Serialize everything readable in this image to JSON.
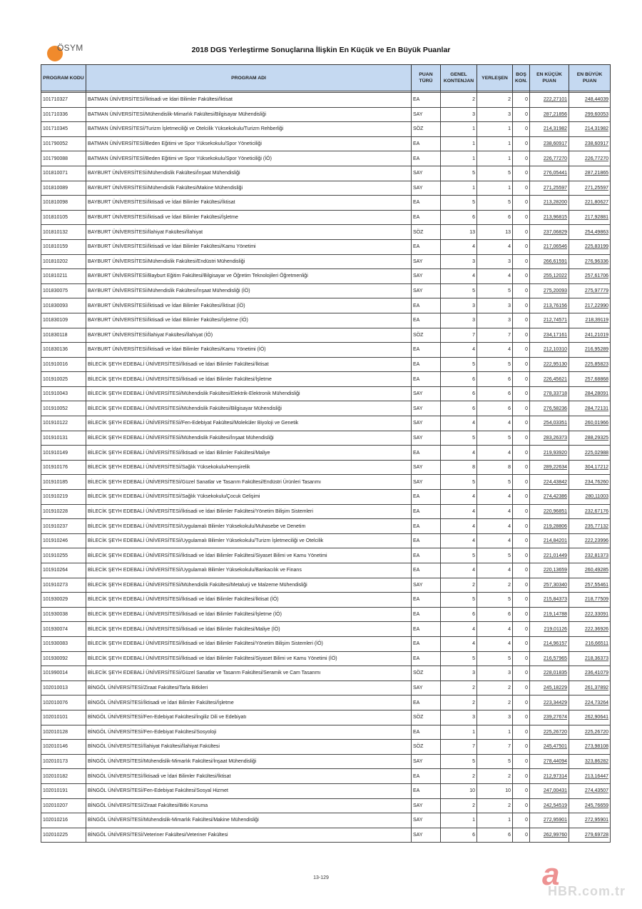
{
  "logo": {
    "text": "ÖSYM",
    "color": "#f08a2c"
  },
  "title": "2018 DGS Yerleştirme Sonuçlarına İlişkin En Küçük ve En Büyük Puanlar",
  "columns": [
    "PROGRAM KODU",
    "PROGRAM ADI",
    "PUAN TÜRÜ",
    "GENEL KONTENJAN",
    "YERLEŞEN",
    "BOŞ KON.",
    "EN KÜÇÜK PUAN",
    "EN BÜYÜK PUAN"
  ],
  "header_color": "#c5d9f1",
  "rows": [
    [
      "101710327",
      "BATMAN ÜNİVERSİTESİ/İktisadi ve İdari Bilimler Fakültesi/İktisat",
      "EA",
      "2",
      "2",
      "0",
      "222,27101",
      "248,44039"
    ],
    [
      "101710336",
      "BATMAN ÜNİVERSİTESİ/Mühendislik-Mimarlık Fakültesi/Bilgisayar Mühendisliği",
      "SAY",
      "3",
      "3",
      "0",
      "287,21856",
      "299,60053"
    ],
    [
      "101710345",
      "BATMAN ÜNİVERSİTESİ/Turizm İşletmeciliği ve Otelcilik Yüksekokulu/Turizm Rehberliği",
      "SÖZ",
      "1",
      "1",
      "0",
      "214,31982",
      "214,31982"
    ],
    [
      "101790052",
      "BATMAN ÜNİVERSİTESİ/Beden Eğitimi ve Spor Yüksekokulu/Spor Yöneticiliği",
      "EA",
      "1",
      "1",
      "0",
      "238,60917",
      "238,60917"
    ],
    [
      "101790088",
      "BATMAN ÜNİVERSİTESİ/Beden Eğitimi ve Spor Yüksekokulu/Spor Yöneticiliği (İÖ)",
      "EA",
      "1",
      "1",
      "0",
      "226,77270",
      "226,77270"
    ],
    [
      "101810071",
      "BAYBURT ÜNİVERSİTESİ/Mühendislik Fakültesi/İnşaat Mühendisliği",
      "SAY",
      "5",
      "5",
      "0",
      "276,05441",
      "287,21865"
    ],
    [
      "101810089",
      "BAYBURT ÜNİVERSİTESİ/Mühendislik Fakültesi/Makine Mühendisliği",
      "SAY",
      "1",
      "1",
      "0",
      "271,25597",
      "271,25597"
    ],
    [
      "101810098",
      "BAYBURT ÜNİVERSİTESİ/İktisadi ve İdari Bilimler Fakültesi/İktisat",
      "EA",
      "5",
      "5",
      "0",
      "213,28200",
      "221,80627"
    ],
    [
      "101810105",
      "BAYBURT ÜNİVERSİTESİ/İktisadi ve İdari Bilimler Fakültesi/İşletme",
      "EA",
      "6",
      "6",
      "0",
      "213,96815",
      "217,92881"
    ],
    [
      "101810132",
      "BAYBURT ÜNİVERSİTESİ/İlahiyat Fakültesi/İlahiyat",
      "SÖZ",
      "13",
      "13",
      "0",
      "237,06829",
      "254,49863"
    ],
    [
      "101810159",
      "BAYBURT ÜNİVERSİTESİ/İktisadi ve İdari Bilimler Fakültesi/Kamu Yönetimi",
      "EA",
      "4",
      "4",
      "0",
      "217,06546",
      "225,83199"
    ],
    [
      "101810202",
      "BAYBURT ÜNİVERSİTESİ/Mühendislik Fakültesi/Endüstri Mühendisliği",
      "SAY",
      "3",
      "3",
      "0",
      "266,61591",
      "276,96336"
    ],
    [
      "101810211",
      "BAYBURT ÜNİVERSİTESİ/Bayburt Eğitim Fakültesi/Bilgisayar ve Öğretim Teknolojileri Öğretmenliği",
      "SAY",
      "4",
      "4",
      "0",
      "255,12022",
      "257,61706"
    ],
    [
      "101830075",
      "BAYBURT ÜNİVERSİTESİ/Mühendislik Fakültesi/İnşaat Mühendisliği (İÖ)",
      "SAY",
      "5",
      "5",
      "0",
      "275,20093",
      "275,97779"
    ],
    [
      "101830093",
      "BAYBURT ÜNİVERSİTESİ/İktisadi ve İdari Bilimler Fakültesi/İktisat (İÖ)",
      "EA",
      "3",
      "3",
      "0",
      "213,76156",
      "217,22990"
    ],
    [
      "101830109",
      "BAYBURT ÜNİVERSİTESİ/İktisadi ve İdari Bilimler Fakültesi/İşletme (İÖ)",
      "EA",
      "3",
      "3",
      "0",
      "212,74571",
      "218,39119"
    ],
    [
      "101830118",
      "BAYBURT ÜNİVERSİTESİ/İlahiyat Fakültesi/İlahiyat (İÖ)",
      "SÖZ",
      "7",
      "7",
      "0",
      "234,17161",
      "241,21019"
    ],
    [
      "101830136",
      "BAYBURT ÜNİVERSİTESİ/İktisadi ve İdari Bilimler Fakültesi/Kamu Yönetimi (İÖ)",
      "EA",
      "4",
      "4",
      "0",
      "212,10310",
      "216,95289"
    ],
    [
      "101910016",
      "BİLECİK ŞEYH EDEBALİ ÜNİVERSİTESİ/İktisadi ve İdari Bilimler Fakültesi/İktisat",
      "EA",
      "5",
      "5",
      "0",
      "222,95130",
      "225,85823"
    ],
    [
      "101910025",
      "BİLECİK ŞEYH EDEBALİ ÜNİVERSİTESİ/İktisadi ve İdari Bilimler Fakültesi/İşletme",
      "EA",
      "6",
      "6",
      "0",
      "226,45621",
      "257,68868"
    ],
    [
      "101910043",
      "BİLECİK ŞEYH EDEBALİ ÜNİVERSİTESİ/Mühendislik Fakültesi/Elektrik-Elektronik Mühendisliği",
      "SAY",
      "6",
      "6",
      "0",
      "278,33718",
      "284,28091"
    ],
    [
      "101910052",
      "BİLECİK ŞEYH EDEBALİ ÜNİVERSİTESİ/Mühendislik Fakültesi/Bilgisayar Mühendisliği",
      "SAY",
      "6",
      "6",
      "0",
      "276,58236",
      "284,72131"
    ],
    [
      "101910122",
      "BİLECİK ŞEYH EDEBALİ ÜNİVERSİTESİ/Fen-Edebiyat Fakültesi/Moleküler Biyoloji ve Genetik",
      "SAY",
      "4",
      "4",
      "0",
      "254,03351",
      "260,01966"
    ],
    [
      "101910131",
      "BİLECİK ŞEYH EDEBALİ ÜNİVERSİTESİ/Mühendislik Fakültesi/İnşaat Mühendisliği",
      "SAY",
      "5",
      "5",
      "0",
      "283,26373",
      "288,29325"
    ],
    [
      "101910149",
      "BİLECİK ŞEYH EDEBALİ ÜNİVERSİTESİ/İktisadi ve İdari Bilimler Fakültesi/Maliye",
      "EA",
      "4",
      "4",
      "0",
      "219,93920",
      "225,02988"
    ],
    [
      "101910176",
      "BİLECİK ŞEYH EDEBALİ ÜNİVERSİTESİ/Sağlık Yüksekokulu/Hemşirelik",
      "SAY",
      "8",
      "8",
      "0",
      "289,22634",
      "304,17212"
    ],
    [
      "101910185",
      "BİLECİK ŞEYH EDEBALİ ÜNİVERSİTESİ/Güzel Sanatlar ve Tasarım Fakültesi/Endüstri Ürünleri Tasarımı",
      "SAY",
      "5",
      "5",
      "0",
      "224,43842",
      "234,76260"
    ],
    [
      "101910219",
      "BİLECİK ŞEYH EDEBALİ ÜNİVERSİTESİ/Sağlık Yüksekokulu/Çocuk Gelişimi",
      "EA",
      "4",
      "4",
      "0",
      "274,42386",
      "280,11003"
    ],
    [
      "101910228",
      "BİLECİK ŞEYH EDEBALİ ÜNİVERSİTESİ/İktisadi ve İdari Bilimler Fakültesi/Yönetim Bilişim Sistemleri",
      "EA",
      "4",
      "4",
      "0",
      "220,96851",
      "232,67176"
    ],
    [
      "101910237",
      "BİLECİK ŞEYH EDEBALİ ÜNİVERSİTESİ/Uygulamalı Bilimler Yüksekokulu/Muhasebe ve Denetim",
      "EA",
      "4",
      "4",
      "0",
      "219,28806",
      "235,77132"
    ],
    [
      "101910246",
      "BİLECİK ŞEYH EDEBALİ ÜNİVERSİTESİ/Uygulamalı Bilimler Yüksekokulu/Turizm İşletmeciliği ve Otelcilik",
      "EA",
      "4",
      "4",
      "0",
      "214,84201",
      "222,23996"
    ],
    [
      "101910255",
      "BİLECİK ŞEYH EDEBALİ ÜNİVERSİTESİ/İktisadi ve İdari Bilimler Fakültesi/Siyaset Bilimi ve Kamu Yönetimi",
      "EA",
      "5",
      "5",
      "0",
      "221,01449",
      "232,81373"
    ],
    [
      "101910264",
      "BİLECİK ŞEYH EDEBALİ ÜNİVERSİTESİ/Uygulamalı Bilimler Yüksekokulu/Bankacılık ve Finans",
      "EA",
      "4",
      "4",
      "0",
      "220,13659",
      "260,49285"
    ],
    [
      "101910273",
      "BİLECİK ŞEYH EDEBALİ ÜNİVERSİTESİ/Mühendislik Fakültesi/Metalurji ve Malzeme Mühendisliği",
      "SAY",
      "2",
      "2",
      "0",
      "257,30340",
      "257,55461"
    ],
    [
      "101930029",
      "BİLECİK ŞEYH EDEBALİ ÜNİVERSİTESİ/İktisadi ve İdari Bilimler Fakültesi/İktisat (İÖ)",
      "EA",
      "5",
      "5",
      "0",
      "215,84373",
      "218,77509"
    ],
    [
      "101930038",
      "BİLECİK ŞEYH EDEBALİ ÜNİVERSİTESİ/İktisadi ve İdari Bilimler Fakültesi/İşletme (İÖ)",
      "EA",
      "6",
      "6",
      "0",
      "219,14788",
      "222,33091"
    ],
    [
      "101930074",
      "BİLECİK ŞEYH EDEBALİ ÜNİVERSİTESİ/İktisadi ve İdari Bilimler Fakültesi/Maliye (İÖ)",
      "EA",
      "4",
      "4",
      "0",
      "219,01126",
      "222,36926"
    ],
    [
      "101930083",
      "BİLECİK ŞEYH EDEBALİ ÜNİVERSİTESİ/İktisadi ve İdari Bilimler Fakültesi/Yönetim Bilişim Sistemleri (İÖ)",
      "EA",
      "4",
      "4",
      "0",
      "214,96157",
      "216,66511"
    ],
    [
      "101930092",
      "BİLECİK ŞEYH EDEBALİ ÜNİVERSİTESİ/İktisadi ve İdari Bilimler Fakültesi/Siyaset Bilimi ve Kamu Yönetimi (İÖ)",
      "EA",
      "5",
      "5",
      "0",
      "216,57965",
      "218,36373"
    ],
    [
      "101990014",
      "BİLECİK ŞEYH EDEBALİ ÜNİVERSİTESİ/Güzel Sanatlar ve Tasarım Fakültesi/Seramik ve Cam Tasarımı",
      "SÖZ",
      "3",
      "3",
      "0",
      "228,01835",
      "236,41079"
    ],
    [
      "102010013",
      "BİNGÖL ÜNİVERSİTESİ/Ziraat Fakültesi/Tarla Bitkileri",
      "SAY",
      "2",
      "2",
      "0",
      "245,18229",
      "261,37892"
    ],
    [
      "102010076",
      "BİNGÖL ÜNİVERSİTESİ/İktisadi ve İdari Bilimler Fakültesi/İşletme",
      "EA",
      "2",
      "2",
      "0",
      "223,34429",
      "224,73264"
    ],
    [
      "102010101",
      "BİNGÖL ÜNİVERSİTESİ/Fen-Edebiyat Fakültesi/İngiliz Dili ve Edebiyatı",
      "SÖZ",
      "3",
      "3",
      "0",
      "239,27674",
      "262,90641"
    ],
    [
      "102010128",
      "BİNGÖL ÜNİVERSİTESİ/Fen-Edebiyat Fakültesi/Sosyoloji",
      "EA",
      "1",
      "1",
      "0",
      "225,26720",
      "225,26720"
    ],
    [
      "102010146",
      "BİNGÖL ÜNİVERSİTESİ/İlahiyat Fakültesi/İlahiyat Fakültesi",
      "SÖZ",
      "7",
      "7",
      "0",
      "245,47501",
      "273,98108"
    ],
    [
      "102010173",
      "BİNGÖL ÜNİVERSİTESİ/Mühendislik-Mimarlık Fakültesi/İnşaat Mühendisliği",
      "SAY",
      "5",
      "5",
      "0",
      "278,44094",
      "323,86282"
    ],
    [
      "102010182",
      "BİNGÖL ÜNİVERSİTESİ/İktisadi ve İdari Bilimler Fakültesi/İktisat",
      "EA",
      "2",
      "2",
      "0",
      "212,97314",
      "213,16447"
    ],
    [
      "102010191",
      "BİNGÖL ÜNİVERSİTESİ/Fen-Edebiyat Fakültesi/Sosyal Hizmet",
      "EA",
      "10",
      "10",
      "0",
      "247,00431",
      "274,43507"
    ],
    [
      "102010207",
      "BİNGÖL ÜNİVERSİTESİ/Ziraat Fakültesi/Bitki Koruma",
      "SAY",
      "2",
      "2",
      "0",
      "242,54519",
      "245,76659"
    ],
    [
      "102010216",
      "BİNGÖL ÜNİVERSİTESİ/Mühendislik-Mimarlık Fakültesi/Makine Mühendisliği",
      "SAY",
      "1",
      "1",
      "0",
      "272,95901",
      "272,95901"
    ],
    [
      "102010225",
      "BİNGÖL ÜNİVERSİTESİ/Veteriner Fakültesi/Veteriner Fakültesi",
      "SAY",
      "6",
      "6",
      "0",
      "262,99760",
      "279,69728"
    ]
  ],
  "page_number": "13-129",
  "watermark": "HBR.com.tr"
}
